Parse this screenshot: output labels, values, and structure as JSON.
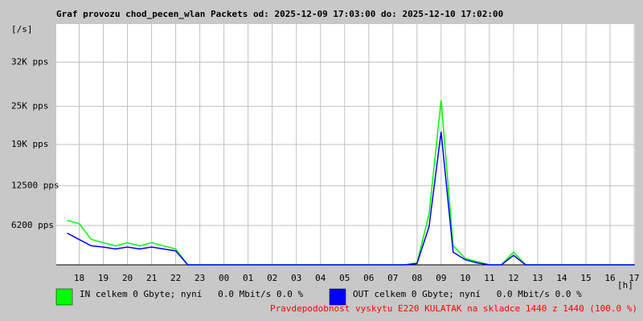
{
  "chart_data": {
    "type": "line",
    "title": "Graf provozu chod_pecen_wlan Packets od: 2025-12-09 17:03:00 do: 2025-12-10 17:02:00",
    "y_unit": "[/s]",
    "x_unit": "[h]",
    "xlim": [
      17.05,
      41.033
    ],
    "xticks": [
      18,
      19,
      20,
      21,
      22,
      23,
      {
        "value": 24,
        "label": "00"
      },
      {
        "value": 25,
        "label": "01"
      },
      {
        "value": 26,
        "label": "02"
      },
      {
        "value": 27,
        "label": "03"
      },
      {
        "value": 28,
        "label": "04"
      },
      {
        "value": 29,
        "label": "05"
      },
      {
        "value": 30,
        "label": "06"
      },
      {
        "value": 31,
        "label": "07"
      },
      {
        "value": 32,
        "label": "08"
      },
      {
        "value": 33,
        "label": "09"
      },
      {
        "value": 34,
        "label": "10"
      },
      {
        "value": 35,
        "label": "11"
      },
      {
        "value": 36,
        "label": "12"
      },
      {
        "value": 37,
        "label": "13"
      },
      {
        "value": 38,
        "label": "14"
      },
      {
        "value": 39,
        "label": "15"
      },
      {
        "value": 40,
        "label": "16"
      },
      {
        "value": 41,
        "label": "17"
      }
    ],
    "ylim": [
      0,
      38000
    ],
    "yticks": [
      {
        "value": 6200,
        "label": "6200 pps"
      },
      {
        "value": 12500,
        "label": "12500 pps"
      },
      {
        "value": 19000,
        "label": "19K pps"
      },
      {
        "value": 25000,
        "label": "25K pps"
      },
      {
        "value": 32000,
        "label": "32K pps"
      }
    ],
    "grid": true,
    "x": [
      17.5,
      18,
      18.5,
      19,
      19.5,
      20,
      20.5,
      21,
      21.5,
      22,
      22.5,
      23,
      23.5,
      24,
      24.5,
      25,
      25.5,
      26,
      26.5,
      27,
      27.5,
      28,
      28.5,
      29,
      29.5,
      30,
      30.5,
      31,
      31.5,
      32,
      32.5,
      33,
      33.5,
      34,
      34.5,
      35,
      35.5,
      36,
      36.5,
      37,
      37.5,
      38,
      38.5,
      39,
      39.5,
      40,
      40.5,
      41
    ],
    "series": [
      {
        "name": "IN celkem 0 Gbyte; nyní   0.0 Mbit/s 0.0 %",
        "color": "#00ff00",
        "values": [
          7000,
          6500,
          4000,
          3500,
          3000,
          3500,
          3000,
          3500,
          3000,
          2500,
          0,
          0,
          0,
          0,
          0,
          0,
          0,
          0,
          0,
          0,
          0,
          0,
          0,
          0,
          0,
          0,
          0,
          0,
          0,
          300,
          8000,
          26000,
          3000,
          1000,
          500,
          0,
          0,
          2000,
          0,
          0,
          0,
          0,
          0,
          0,
          0,
          0,
          0,
          0
        ]
      },
      {
        "name": "OUT celkem 0 Gbyte; nyní   0.0 Mbit/s 0.0 %",
        "color": "#0000ff",
        "values": [
          5000,
          4000,
          3000,
          2800,
          2500,
          2800,
          2500,
          2800,
          2500,
          2200,
          0,
          0,
          0,
          0,
          0,
          0,
          0,
          0,
          0,
          0,
          0,
          0,
          0,
          0,
          0,
          0,
          0,
          0,
          0,
          200,
          6000,
          21000,
          2000,
          800,
          300,
          0,
          0,
          1500,
          0,
          0,
          0,
          0,
          0,
          0,
          0,
          0,
          0,
          0
        ]
      }
    ],
    "footer": "Pravdepodobnost vyskytu E220 KULATAK na skladce 1440 z 1440 (100.0 %)"
  }
}
